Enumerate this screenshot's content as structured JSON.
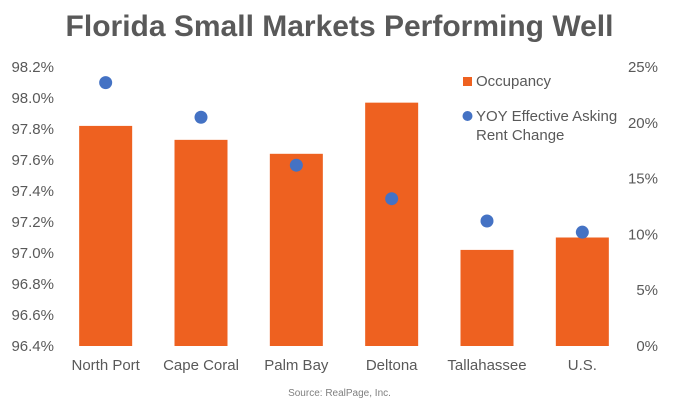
{
  "title": "Florida Small Markets Performing Well",
  "source": "Source: RealPage, Inc.",
  "colors": {
    "occupancy": "#EE6120",
    "rent_change": "#4472C4",
    "text": "#595959"
  },
  "chart_data": {
    "type": "bar",
    "title": "Florida Small Markets Performing Well",
    "categories": [
      "North Port",
      "Cape Coral",
      "Palm Bay",
      "Deltona",
      "Tallahassee",
      "U.S."
    ],
    "series": [
      {
        "name": "Occupancy",
        "kind": "bar",
        "axis": "left",
        "values": [
          97.82,
          97.73,
          97.64,
          97.97,
          97.02,
          97.1
        ]
      },
      {
        "name": "YOY Effective Asking Rent Change",
        "kind": "scatter",
        "axis": "right",
        "values": [
          23.6,
          20.5,
          16.2,
          13.2,
          11.2,
          10.2
        ]
      }
    ],
    "y_left": {
      "min": 96.4,
      "max": 98.2,
      "ticks": [
        "96.4%",
        "96.6%",
        "96.8%",
        "97.0%",
        "97.2%",
        "97.4%",
        "97.6%",
        "97.8%",
        "98.0%",
        "98.2%"
      ]
    },
    "y_right": {
      "min": 0,
      "max": 25,
      "ticks": [
        "0%",
        "5%",
        "10%",
        "15%",
        "20%",
        "25%"
      ]
    },
    "legend_position": "top-right",
    "grid": false
  }
}
